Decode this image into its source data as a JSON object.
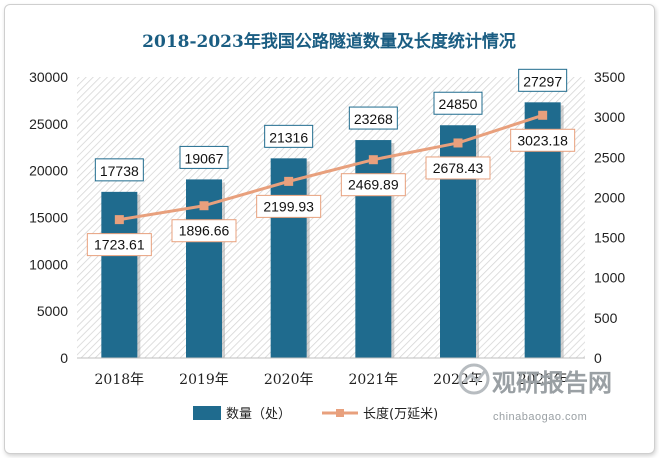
{
  "chart_data": {
    "type": "bar+line",
    "title": "2018-2023年我国公路隧道数量及长度统计情况",
    "categories": [
      "2018年",
      "2019年",
      "2020年",
      "2021年",
      "2022年",
      "2023年"
    ],
    "series": [
      {
        "name": "数量（处）",
        "type": "bar",
        "axis": "left",
        "color": "#1f6b8e",
        "values": [
          17738,
          19067,
          21316,
          23268,
          24850,
          27297
        ],
        "labels": [
          "17738",
          "19067",
          "21316",
          "23268",
          "24850",
          "27297"
        ]
      },
      {
        "name": "长度(万延米)",
        "type": "line",
        "axis": "right",
        "color": "#e8a07d",
        "values": [
          1723.61,
          1896.66,
          2199.93,
          2469.89,
          2678.43,
          3023.18
        ],
        "labels": [
          "1723.61",
          "1896.66",
          "2199.93",
          "2469.89",
          "2678.43",
          "3023.18"
        ]
      }
    ],
    "y_left": {
      "min": 0,
      "max": 30000,
      "ticks": [
        "0",
        "5000",
        "10000",
        "15000",
        "20000",
        "25000",
        "30000"
      ]
    },
    "y_right": {
      "min": 0,
      "max": 3500,
      "ticks": [
        "0",
        "500",
        "1000",
        "1500",
        "2000",
        "2500",
        "3000",
        "3500"
      ]
    },
    "grid": false,
    "legend_position": "bottom"
  },
  "watermark": {
    "name": "观研报告网",
    "url": "chinabaogao.com"
  }
}
